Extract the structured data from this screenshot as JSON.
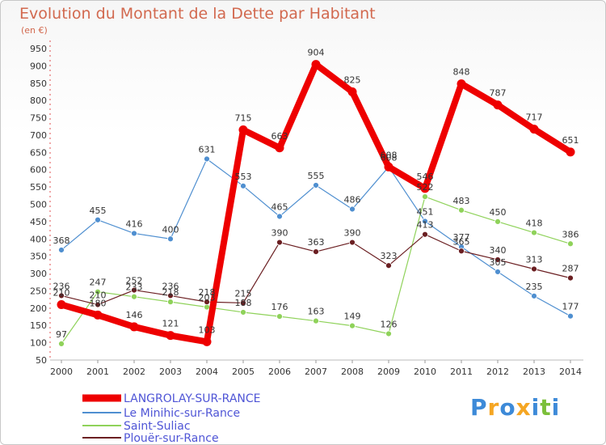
{
  "chart_data": {
    "type": "line",
    "title": "Evolution du Montant de la Dette par Habitant",
    "subtitle": "(en €)",
    "x": [
      "2000",
      "2001",
      "2002",
      "2003",
      "2004",
      "2005",
      "2006",
      "2007",
      "2008",
      "2009",
      "2010",
      "2011",
      "2012",
      "2013",
      "2014"
    ],
    "ylim": [
      50,
      950
    ],
    "yticks": [
      50,
      100,
      150,
      200,
      250,
      300,
      350,
      400,
      450,
      500,
      550,
      600,
      650,
      700,
      750,
      800,
      850,
      900,
      950
    ],
    "grid": false,
    "legend_position": "bottom-left",
    "series": [
      {
        "name": "LANGROLAY-SUR-RANCE",
        "color": "#ee0000",
        "width": 8,
        "values": [
          210,
          180,
          146,
          121,
          103,
          715,
          663,
          904,
          825,
          608,
          546,
          848,
          787,
          717,
          651
        ]
      },
      {
        "name": "Le Minihic-sur-Rance",
        "color": "#4f8fd0",
        "width": 1.2,
        "values": [
          368,
          455,
          416,
          400,
          631,
          553,
          465,
          555,
          486,
          608,
          451,
          377,
          305,
          235,
          177
        ]
      },
      {
        "name": "Saint-Suliac",
        "color": "#8fd25a",
        "width": 1.2,
        "values": [
          97,
          247,
          233,
          218,
          203,
          188,
          176,
          163,
          149,
          126,
          522,
          483,
          450,
          418,
          386
        ]
      },
      {
        "name": "Plouër-sur-Rance",
        "color": "#6b1f22",
        "width": 1.2,
        "values": [
          236,
          210,
          252,
          236,
          218,
          215,
          390,
          363,
          390,
          323,
          413,
          365,
          340,
          313,
          287
        ]
      }
    ]
  },
  "brand": {
    "letters": [
      "P",
      "r",
      "o",
      "x",
      "i",
      "t",
      "i"
    ],
    "colors": [
      "#3d8ad8",
      "#f5a623",
      "#3d8ad8",
      "#f5a623",
      "#3d8ad8",
      "#7bbf3a",
      "#3d8ad8"
    ]
  }
}
